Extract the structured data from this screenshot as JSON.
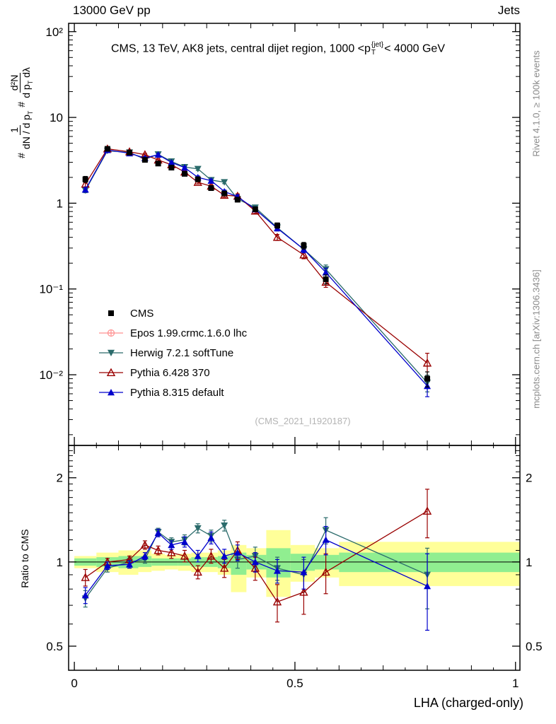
{
  "texts": {
    "header_left": "13000 GeV pp",
    "header_right": "Jets",
    "title_pre": "CMS, 13 TeV, AK8 jets, central dijet region, 1000 <p",
    "title_sup": "{jet}",
    "title_sub": "T",
    "title_post": "< 4000 GeV",
    "watermark": "(CMS_2021_I1920187)",
    "rivet": "Rivet 4.1.0, ≥ 100k events",
    "mcplots": "mcplots.cern.ch [arXiv:1306.3436]",
    "xlabel": "LHA (charged-only)",
    "ratio_ylabel": "Ratio to CMS",
    "ylabel": {
      "hash1": "#",
      "num1": "1",
      "den1_pre": "dN / d p",
      "den1_sub": "T",
      "hash2": "#",
      "num2": "d²N",
      "den2_pre": "d p",
      "den2_sub": "T",
      "den2_post": " dλ"
    }
  },
  "legend": [
    {
      "label": "CMS",
      "marker": "square",
      "color": "#000000",
      "line": false
    },
    {
      "label": "Epos 1.99.crmc.1.6.0 lhc",
      "marker": "circle-plus",
      "color": "#ff9090",
      "line": true
    },
    {
      "label": "Herwig 7.2.1 softTune",
      "marker": "triangle-down",
      "color": "#2b6b6b",
      "line": true
    },
    {
      "label": "Pythia 6.428 370",
      "marker": "triangle-up-open",
      "color": "#990000",
      "line": true
    },
    {
      "label": "Pythia 8.315 default",
      "marker": "triangle-up",
      "color": "#0000cc",
      "line": true
    }
  ],
  "chart_data": [
    {
      "type": "line",
      "panel": "main",
      "title": "CMS, 13 TeV, AK8 jets, central dijet region, 1000 <p_T^{jet}< 4000 GeV",
      "xlabel": "LHA (charged-only)",
      "ylabel": "# 1/(dN/dp_T) d²N/(dp_T dλ)",
      "yscale": "log",
      "grid": false,
      "legend_position": "left-middle-inside",
      "xlim": [
        -0.013,
        1.01
      ],
      "ylim": [
        0.0015,
        125
      ],
      "yticks": [
        {
          "v": 100,
          "label": "10²"
        },
        {
          "v": 10,
          "label": "10"
        },
        {
          "v": 1,
          "label": "1"
        },
        {
          "v": 0.1,
          "label": "10⁻¹"
        },
        {
          "v": 0.01,
          "label": "10⁻²"
        }
      ],
      "xticks": [
        {
          "v": 0,
          "label": "0"
        },
        {
          "v": 0.5,
          "label": "0.5"
        },
        {
          "v": 1,
          "label": "1"
        }
      ],
      "x": [
        0.025,
        0.075,
        0.125,
        0.16,
        0.19,
        0.22,
        0.25,
        0.28,
        0.31,
        0.34,
        0.37,
        0.41,
        0.46,
        0.52,
        0.57,
        0.8
      ],
      "series": [
        {
          "name": "CMS",
          "color": "#000000",
          "marker": "square",
          "line": false,
          "values": [
            1.9,
            4.3,
            3.9,
            3.2,
            2.9,
            2.6,
            2.2,
            1.9,
            1.5,
            1.3,
            1.1,
            0.85,
            0.55,
            0.32,
            0.13,
            0.009
          ],
          "yerr_frac": [
            0.08,
            0.04,
            0.04,
            0.04,
            0.04,
            0.04,
            0.04,
            0.05,
            0.05,
            0.05,
            0.06,
            0.06,
            0.07,
            0.09,
            0.12,
            0.2
          ]
        },
        {
          "name": "Epos 1.99.crmc.1.6.0 lhc",
          "color": "#ff9090",
          "marker": "circle-plus",
          "line": true,
          "values": [],
          "yerr_frac": []
        },
        {
          "name": "Herwig 7.2.1 softTune",
          "color": "#2b6b6b",
          "marker": "triangle-down",
          "line": true,
          "values": [
            1.41,
            4.09,
            3.9,
            3.26,
            3.71,
            3.07,
            2.64,
            2.51,
            1.86,
            1.76,
            1.12,
            0.89,
            0.52,
            0.29,
            0.17,
            0.0081
          ],
          "yerr_frac": [
            0.06,
            0.03,
            0.03,
            0.03,
            0.03,
            0.03,
            0.03,
            0.04,
            0.04,
            0.04,
            0.05,
            0.05,
            0.07,
            0.09,
            0.12,
            0.22
          ]
        },
        {
          "name": "Pythia 6.428 370",
          "color": "#990000",
          "marker": "triangle-up-open",
          "line": true,
          "values": [
            1.67,
            4.3,
            3.98,
            3.68,
            3.19,
            2.81,
            2.31,
            1.75,
            1.58,
            1.24,
            1.21,
            0.81,
            0.4,
            0.25,
            0.12,
            0.0137
          ],
          "yerr_frac": [
            0.07,
            0.03,
            0.03,
            0.03,
            0.03,
            0.03,
            0.04,
            0.04,
            0.04,
            0.05,
            0.06,
            0.06,
            0.08,
            0.1,
            0.13,
            0.3
          ]
        },
        {
          "name": "Pythia 8.315 default",
          "color": "#0000cc",
          "marker": "triangle-up",
          "line": true,
          "values": [
            1.44,
            4.17,
            3.82,
            3.36,
            3.68,
            2.99,
            2.6,
            2.0,
            1.83,
            1.37,
            1.19,
            0.85,
            0.51,
            0.29,
            0.156,
            0.0074
          ],
          "yerr_frac": [
            0.06,
            0.03,
            0.03,
            0.03,
            0.03,
            0.03,
            0.03,
            0.04,
            0.04,
            0.04,
            0.05,
            0.05,
            0.07,
            0.09,
            0.12,
            0.25
          ]
        }
      ]
    },
    {
      "type": "ratio",
      "panel": "ratio",
      "ylabel": "Ratio to CMS",
      "yscale": "log",
      "reference_line": 1,
      "ylim": [
        0.41,
        2.61
      ],
      "yticks": [
        {
          "v": 2,
          "label": "2"
        },
        {
          "v": 1,
          "label": "1"
        },
        {
          "v": 0.5,
          "label": "0.5"
        }
      ],
      "x": [
        0.025,
        0.075,
        0.125,
        0.16,
        0.19,
        0.22,
        0.25,
        0.28,
        0.31,
        0.34,
        0.37,
        0.41,
        0.46,
        0.52,
        0.57,
        0.8
      ],
      "bands": {
        "colors": {
          "yellow": "#ffff99",
          "green": "#90ee90"
        },
        "edges": [
          0.0,
          0.05,
          0.1,
          0.145,
          0.175,
          0.205,
          0.235,
          0.265,
          0.295,
          0.325,
          0.355,
          0.39,
          0.435,
          0.49,
          0.545,
          0.6,
          1.01
        ],
        "yellow_lo": [
          0.95,
          0.92,
          0.9,
          0.92,
          0.93,
          0.94,
          0.93,
          0.92,
          0.92,
          0.9,
          0.78,
          0.88,
          0.75,
          0.85,
          0.88,
          0.82
        ],
        "yellow_hi": [
          1.05,
          1.08,
          1.1,
          1.1,
          1.07,
          1.06,
          1.07,
          1.08,
          1.08,
          1.1,
          1.15,
          1.12,
          1.3,
          1.15,
          1.12,
          1.18
        ],
        "green_lo": [
          0.97,
          0.96,
          0.95,
          0.96,
          0.97,
          0.97,
          0.97,
          0.96,
          0.96,
          0.95,
          0.9,
          0.94,
          0.88,
          0.93,
          0.94,
          0.92
        ],
        "green_hi": [
          1.03,
          1.04,
          1.05,
          1.05,
          1.03,
          1.03,
          1.03,
          1.04,
          1.04,
          1.05,
          1.08,
          1.06,
          1.12,
          1.07,
          1.06,
          1.08
        ]
      },
      "series": [
        {
          "name": "Herwig 7.2.1 softTune",
          "color": "#2b6b6b",
          "marker": "triangle-down",
          "line": true,
          "values": [
            0.74,
            0.95,
            1.0,
            1.02,
            1.28,
            1.18,
            1.2,
            1.32,
            1.24,
            1.35,
            1.02,
            1.05,
            0.95,
            0.9,
            1.3,
            0.9
          ],
          "yerr": [
            0.05,
            0.03,
            0.03,
            0.03,
            0.04,
            0.04,
            0.05,
            0.05,
            0.06,
            0.06,
            0.07,
            0.08,
            0.09,
            0.12,
            0.14,
            0.22
          ]
        },
        {
          "name": "Pythia 6.428 370",
          "color": "#990000",
          "marker": "triangle-up-open",
          "line": true,
          "values": [
            0.88,
            1.0,
            1.02,
            1.15,
            1.1,
            1.08,
            1.05,
            0.92,
            1.05,
            0.95,
            1.1,
            0.95,
            0.72,
            0.78,
            0.92,
            1.52
          ],
          "yerr": [
            0.06,
            0.03,
            0.03,
            0.04,
            0.04,
            0.05,
            0.05,
            0.05,
            0.06,
            0.07,
            0.08,
            0.09,
            0.11,
            0.13,
            0.15,
            0.3
          ]
        },
        {
          "name": "Pythia 8.315 default",
          "color": "#0000cc",
          "marker": "triangle-up",
          "line": true,
          "values": [
            0.76,
            0.97,
            0.98,
            1.05,
            1.27,
            1.15,
            1.18,
            1.05,
            1.22,
            1.05,
            1.08,
            1.0,
            0.93,
            0.92,
            1.2,
            0.82
          ],
          "yerr": [
            0.05,
            0.03,
            0.03,
            0.03,
            0.04,
            0.04,
            0.05,
            0.05,
            0.06,
            0.06,
            0.07,
            0.08,
            0.09,
            0.12,
            0.14,
            0.25
          ]
        }
      ]
    }
  ]
}
